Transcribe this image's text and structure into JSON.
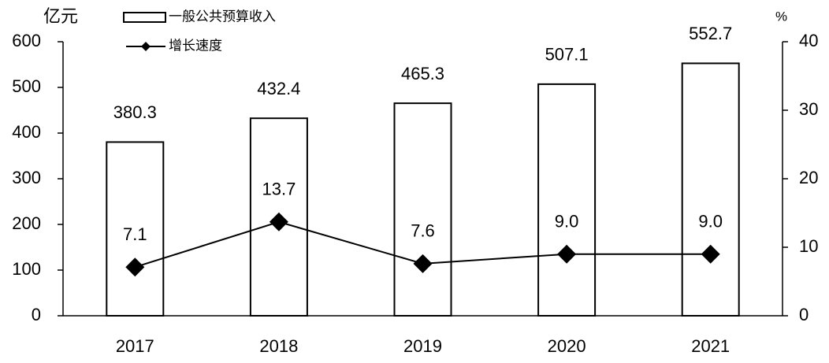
{
  "chart_data": {
    "type": "bar",
    "y_label": "亿元",
    "y2_label": "%",
    "categories": [
      "2017",
      "2018",
      "2019",
      "2020",
      "2021"
    ],
    "series": [
      {
        "name": "一般公共预算收入",
        "type": "bar",
        "color": "#ffffff",
        "values": [
          380.3,
          432.4,
          465.3,
          507.1,
          552.7
        ]
      },
      {
        "name": "增长速度",
        "type": "line",
        "axis": "y2",
        "color": "#000000",
        "values": [
          7.1,
          13.7,
          7.6,
          9.0,
          9.0
        ],
        "value_labels": [
          "7.1",
          "13.7",
          "7.6",
          "9.0",
          "9.0"
        ]
      }
    ],
    "ylim": [
      0,
      600
    ],
    "yticks": [
      0,
      100,
      200,
      300,
      400,
      500,
      600
    ],
    "y2lim": [
      0,
      40
    ],
    "y2ticks": [
      0,
      10,
      20,
      30,
      40
    ],
    "grid": false
  }
}
